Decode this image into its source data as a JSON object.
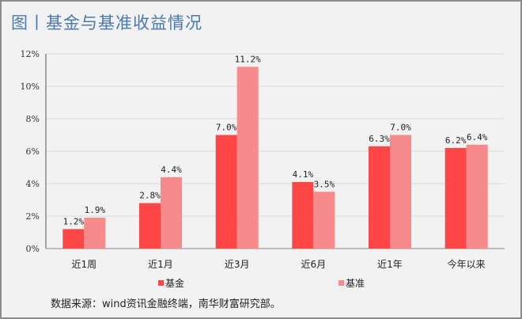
{
  "title": "图丨基金与基准收益情况",
  "source": "数据来源：wind资讯金融终端，南华财富研究部。",
  "chart_data": {
    "type": "bar",
    "categories": [
      "近1周",
      "近1月",
      "近3月",
      "近6月",
      "近1年",
      "今年以来"
    ],
    "series": [
      {
        "name": "基金",
        "values": [
          1.2,
          2.8,
          7.0,
          4.1,
          6.3,
          6.2
        ],
        "color": "#ff4646"
      },
      {
        "name": "基准",
        "values": [
          1.9,
          4.4,
          11.2,
          3.5,
          7.0,
          6.4
        ],
        "color": "#f78b8b"
      }
    ],
    "data_labels": [
      [
        "1.2%",
        "2.8%",
        "7.0%",
        "4.1%",
        "6.3%",
        "6.2%"
      ],
      [
        "1.9%",
        "4.4%",
        "11.2%",
        "3.5%",
        "7.0%",
        "6.4%"
      ]
    ],
    "yticks": [
      "0%",
      "2%",
      "4%",
      "6%",
      "8%",
      "10%",
      "12%"
    ],
    "ylim": [
      0,
      12
    ],
    "grid": true,
    "legend": "bottom"
  }
}
